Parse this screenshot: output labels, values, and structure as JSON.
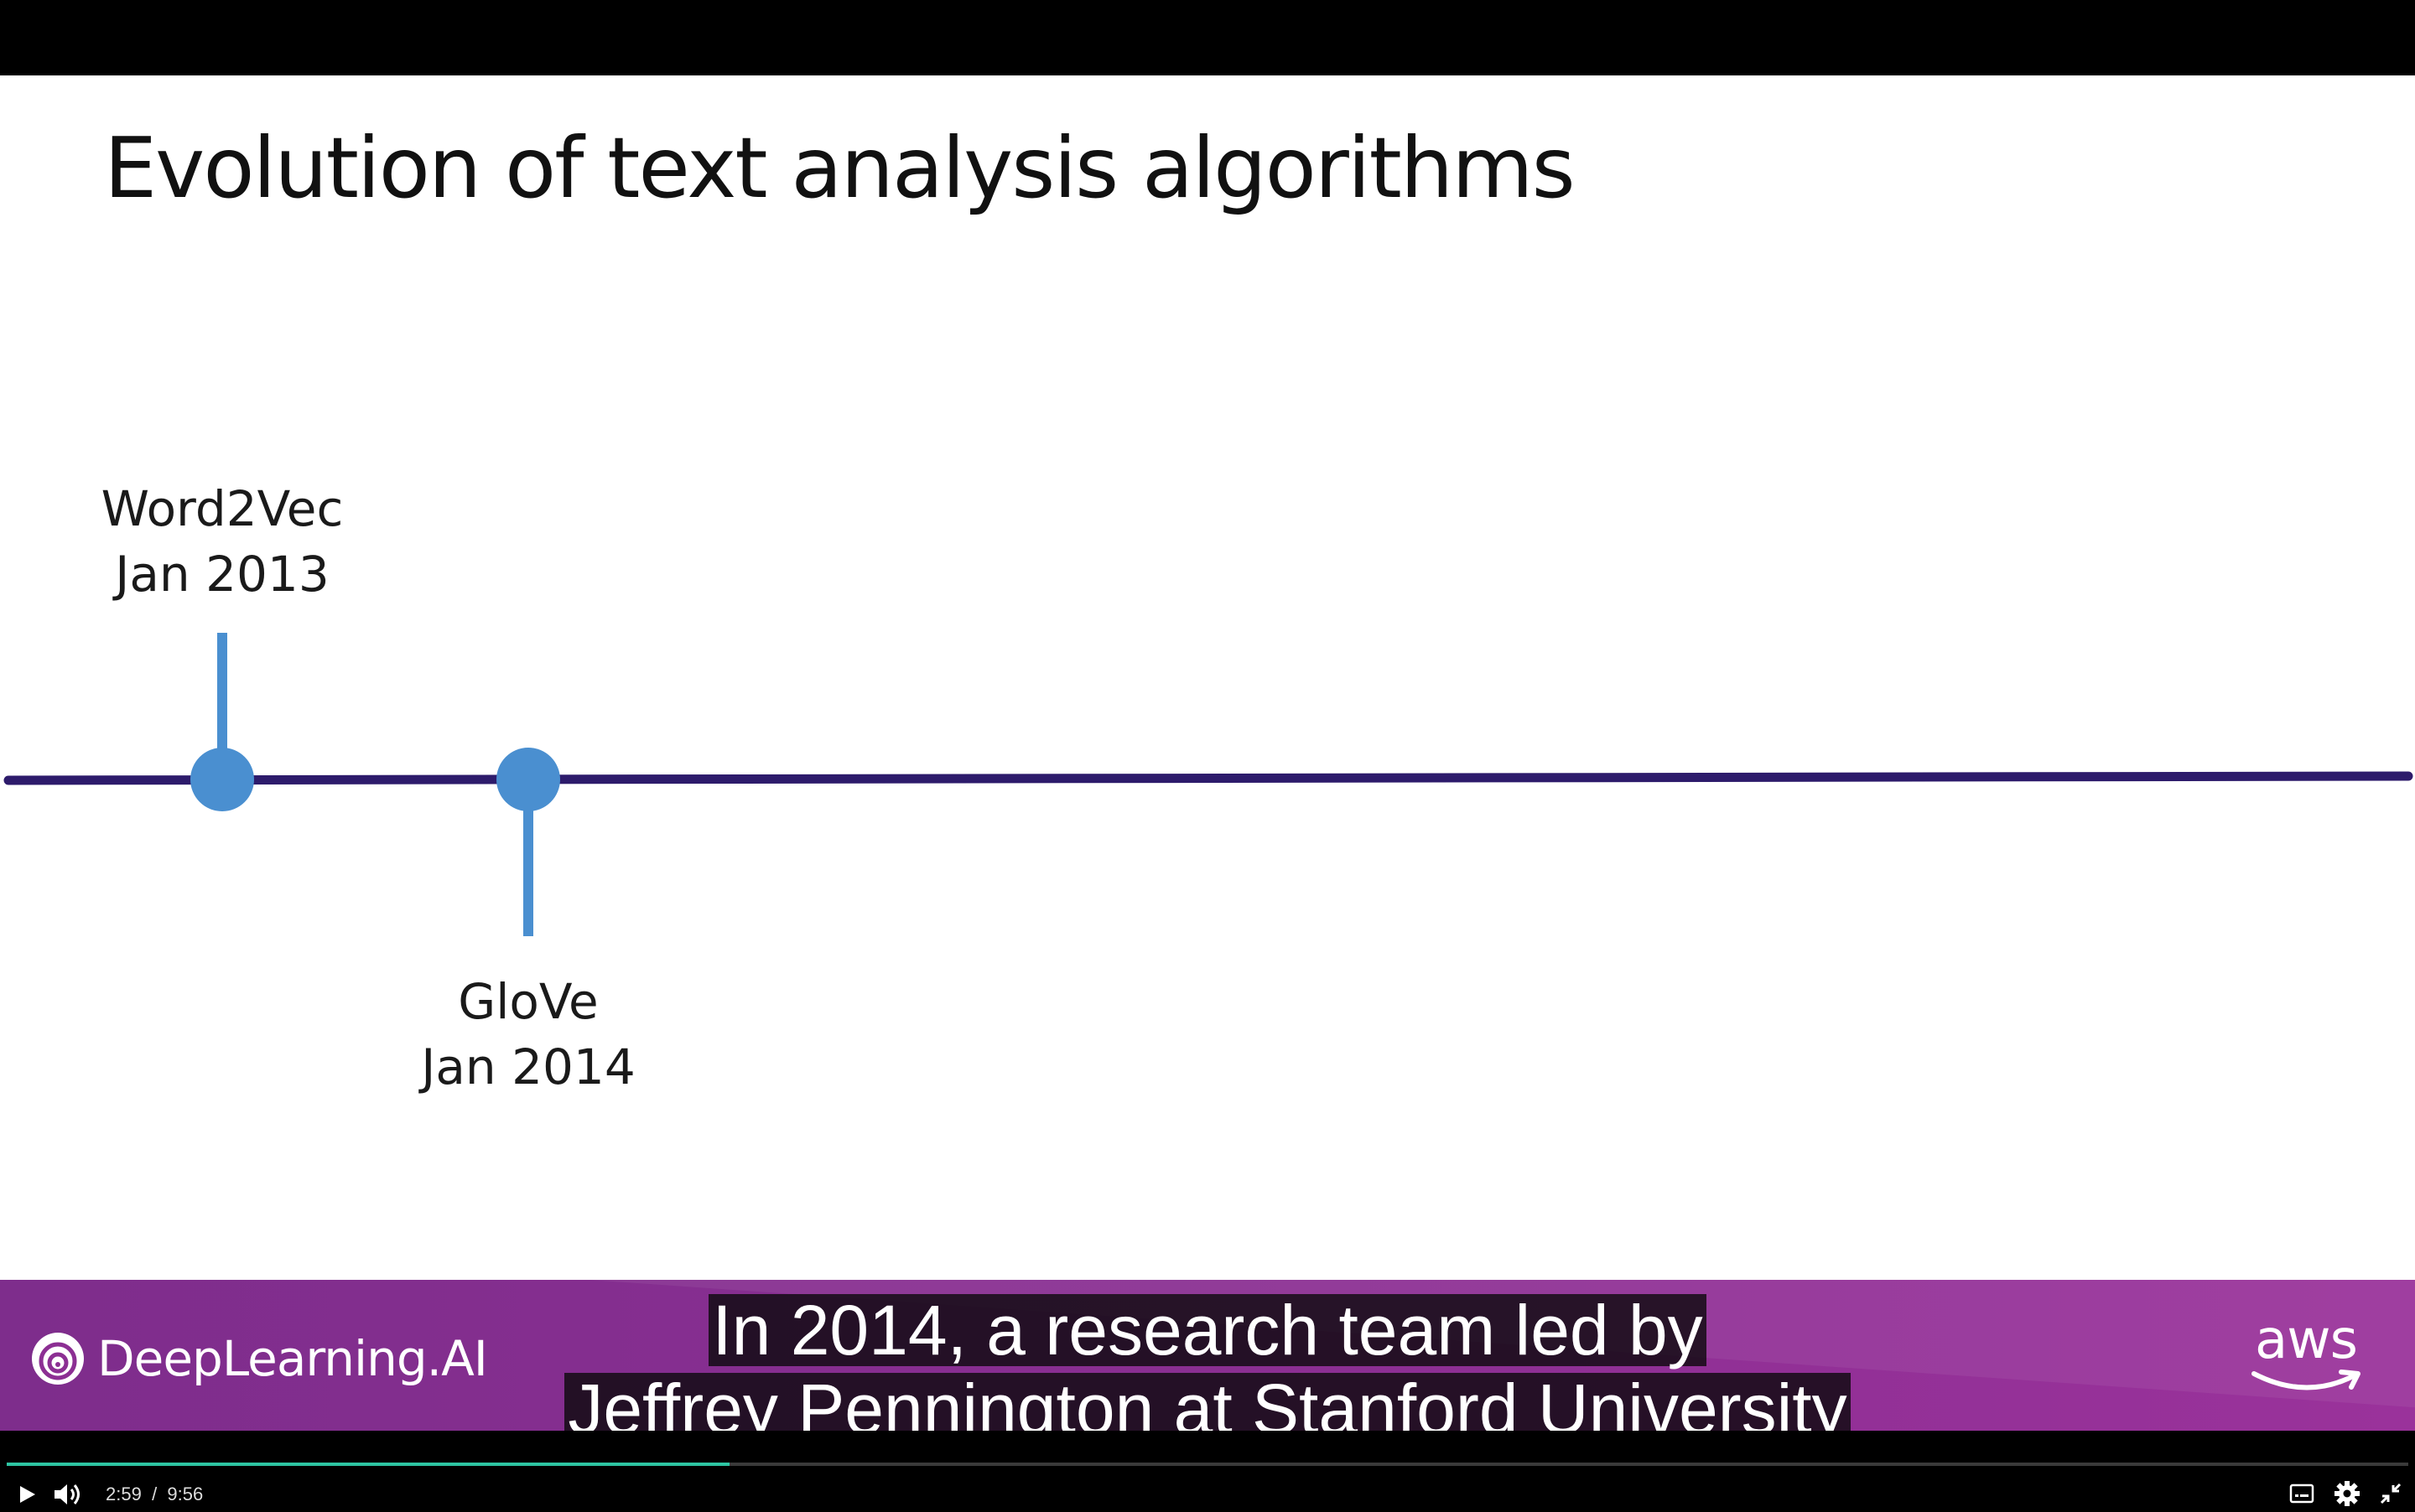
{
  "slide": {
    "title": "Evolution of text analysis algorithms",
    "timeline": {
      "events": [
        {
          "name": "Word2Vec",
          "date": "Jan 2013",
          "label_side": "above"
        },
        {
          "name": "GloVe",
          "date": "Jan 2014",
          "label_side": "below"
        }
      ],
      "line_color": "#2d1b6b",
      "marker_color": "#4a8fd0"
    }
  },
  "banner": {
    "brand": "DeepLearning.AI",
    "partner": "aws",
    "gradient_colors": [
      "#7e2d8c",
      "#9a329b"
    ]
  },
  "captions": {
    "line1": "In 2014, a research team led by",
    "line2": "Jeffrey Pennington at Stanford University"
  },
  "player": {
    "current_time": "2:59",
    "separator": "/",
    "duration": "9:56",
    "progress_fraction": 0.301,
    "accent_color": "#2ec5a3"
  }
}
